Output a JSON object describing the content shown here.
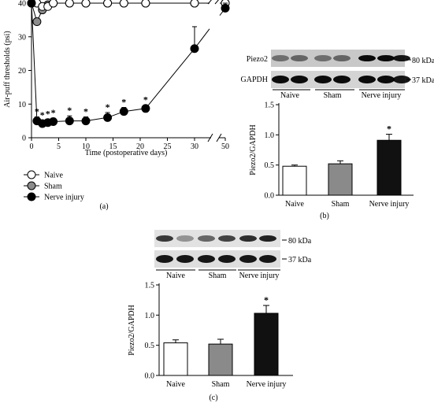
{
  "panels": {
    "a": "(a)",
    "b": "(b)",
    "c": "(c)"
  },
  "blot_text": {
    "piezo2": "Piezo2",
    "gapdh": "GAPDH",
    "kda80": "80 kDa",
    "kda37": "37 kDa"
  },
  "colors": {
    "naive": "#ffffff",
    "sham": "#8c8c8c",
    "nerve": "#000000",
    "sham_bar": "#8a8a8a",
    "nerve_bar": "#111111"
  },
  "chart_data": [
    {
      "id": "a",
      "type": "line",
      "xlabel": "Time (postoperative days)",
      "ylabel": "Air-puff thresholds (psi)",
      "xticks": [
        0,
        5,
        10,
        15,
        20,
        25,
        30,
        50
      ],
      "yticks": [
        0,
        10,
        20,
        30,
        40
      ],
      "xlim": [
        0,
        50
      ],
      "ylim": [
        0,
        40
      ],
      "axis_break_x": true,
      "grid": false,
      "legend": "bottom-left",
      "series": [
        {
          "name": "Naive",
          "x": [
            0,
            1,
            2,
            3,
            4,
            7,
            10,
            14,
            17,
            21,
            30,
            50
          ],
          "y": [
            40,
            40,
            39,
            39,
            40,
            40,
            40,
            40,
            40,
            40,
            40,
            40
          ],
          "err": [
            0,
            0,
            1,
            1,
            0,
            0,
            0,
            0,
            0,
            0,
            0,
            0
          ]
        },
        {
          "name": "Sham",
          "x": [
            0,
            1,
            2,
            3,
            4,
            7,
            10,
            14,
            17,
            21,
            30,
            50
          ],
          "y": [
            40,
            34.5,
            38,
            39.5,
            40,
            40,
            40,
            40,
            40,
            40,
            40,
            40
          ],
          "err": [
            0,
            1,
            1,
            0.5,
            0,
            0,
            0,
            0,
            0,
            0,
            0,
            0
          ]
        },
        {
          "name": "Nerve injury",
          "x": [
            0,
            1,
            2,
            3,
            4,
            7,
            10,
            14,
            17,
            21,
            30,
            50
          ],
          "y": [
            40,
            5,
            4.2,
            4.5,
            4.8,
            5,
            5,
            6,
            7.8,
            8.7,
            26.5,
            38.5
          ],
          "err": [
            0,
            1.2,
            1,
            1,
            1,
            1.5,
            1.2,
            1.5,
            1.2,
            1,
            6.5,
            1.5
          ]
        }
      ],
      "annotations": [
        {
          "text": "*",
          "x": 1
        },
        {
          "text": "*",
          "x": 2
        },
        {
          "text": "*",
          "x": 3
        },
        {
          "text": "*",
          "x": 4
        },
        {
          "text": "*",
          "x": 7
        },
        {
          "text": "*",
          "x": 10
        },
        {
          "text": "*",
          "x": 14
        },
        {
          "text": "*",
          "x": 17
        },
        {
          "text": "*",
          "x": 21
        }
      ]
    },
    {
      "id": "b",
      "type": "bar",
      "categories": [
        "Naive",
        "Sham",
        "Nerve injury"
      ],
      "values": [
        0.48,
        0.52,
        0.91
      ],
      "errors": [
        0.02,
        0.05,
        0.1
      ],
      "ylabel": "Piezo2/GAPDH",
      "ylim": [
        0,
        1.5
      ],
      "yticks": [
        0.0,
        0.5,
        1.0,
        1.5
      ],
      "annotations": [
        {
          "text": "*",
          "category": "Nerve injury"
        }
      ]
    },
    {
      "id": "c",
      "type": "bar",
      "categories": [
        "Naive",
        "Sham",
        "Nerve injury"
      ],
      "values": [
        0.54,
        0.52,
        1.03
      ],
      "errors": [
        0.05,
        0.08,
        0.13
      ],
      "ylabel": "Piezo2/GAPDH",
      "ylim": [
        0,
        1.5
      ],
      "yticks": [
        0.0,
        0.5,
        1.0,
        1.5
      ],
      "annotations": [
        {
          "text": "*",
          "category": "Nerve injury"
        }
      ]
    }
  ]
}
